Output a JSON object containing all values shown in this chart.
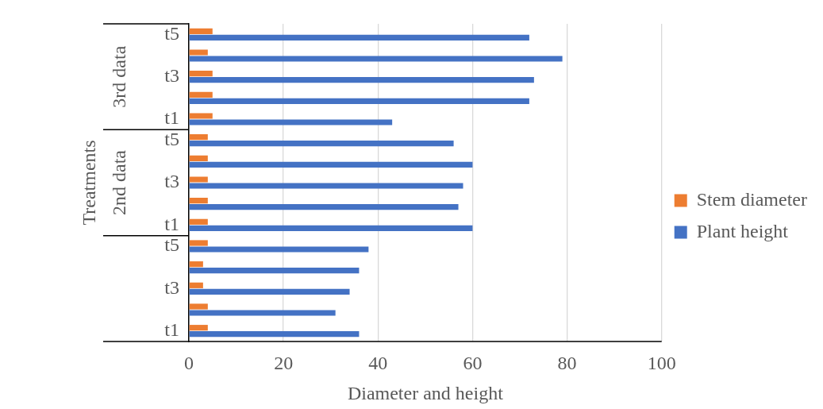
{
  "chart_data": {
    "type": "bar",
    "orientation": "horizontal",
    "xlabel": "Diameter and height",
    "ylabel": "Treatments",
    "categories": [
      "t5",
      null,
      "t3",
      null,
      "t1",
      "t5",
      null,
      "t3",
      null,
      "t1",
      "t5",
      null,
      "t3",
      null,
      "t1"
    ],
    "series": [
      {
        "name": "Stem diameter",
        "color": "#ed7d31",
        "values": [
          5,
          4,
          5,
          5,
          5,
          4,
          4,
          4,
          4,
          4,
          4,
          3,
          3,
          4,
          4
        ]
      },
      {
        "name": "Plant height",
        "color": "#4472c4",
        "values": [
          72,
          79,
          73,
          72,
          43,
          56,
          60,
          58,
          57,
          60,
          38,
          36,
          34,
          31,
          36
        ]
      }
    ],
    "annotations": [
      "3rd data",
      "2nd data"
    ],
    "xlim": [
      0,
      100
    ],
    "xticks": [
      0,
      20,
      40,
      60,
      80,
      100
    ],
    "grid": "x",
    "legend": "right"
  }
}
